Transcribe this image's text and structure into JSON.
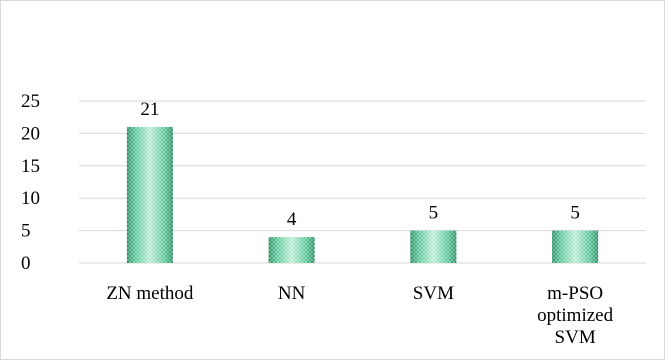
{
  "chart_data": {
    "type": "bar",
    "title": "",
    "xlabel": "",
    "ylabel": "",
    "categories": [
      [
        "ZN method"
      ],
      [
        "NN"
      ],
      [
        "SVM"
      ],
      [
        "m-PSO",
        "optimized",
        "SVM"
      ]
    ],
    "values": [
      21,
      4,
      5,
      5
    ],
    "data_labels": [
      "21",
      "4",
      "5",
      "5"
    ],
    "yticks": [
      "0",
      "5",
      "10",
      "15",
      "20",
      "25"
    ],
    "ylim": [
      0,
      25
    ],
    "grid": true,
    "legend": "none",
    "colors": {
      "bar_fill": "#5ec79a",
      "bar_dark": "#2f8f65",
      "bar_light": "#bfeed7",
      "grid": "#d9d9d9",
      "frame": "#d9d9d9"
    }
  }
}
